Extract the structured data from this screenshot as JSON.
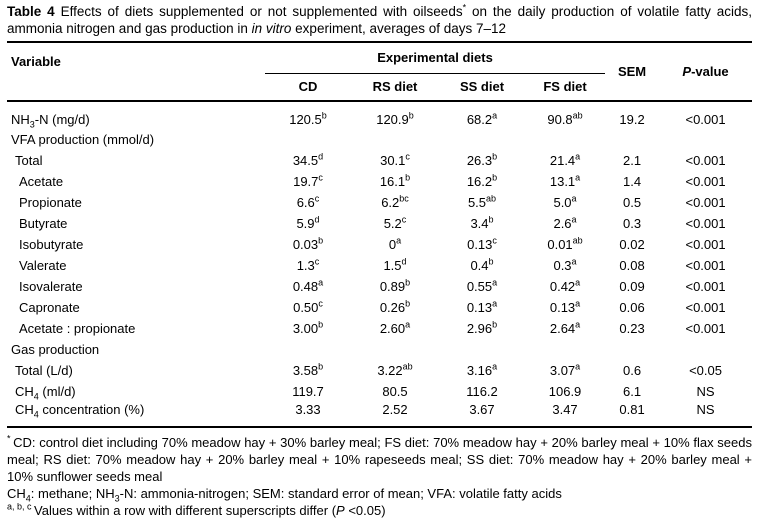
{
  "caption": {
    "segments": [
      {
        "text": "Table 4",
        "bold": true
      },
      {
        "text": " Effects of diets supplemented or not supplemented with oilseeds"
      },
      {
        "text": "*",
        "sup": true
      },
      {
        "text": " on the daily production of volatile fatty acids, ammonia nitrogen and gas production in "
      },
      {
        "text": "in vitro",
        "italic": true
      },
      {
        "text": " experiment, averages of days 7–12"
      }
    ]
  },
  "table": {
    "header": {
      "variable": "Variable",
      "group": "Experimental diets",
      "diet_columns": [
        "CD",
        "RS diet",
        "SS diet",
        "FS diet"
      ],
      "sem": "SEM",
      "pvalue": "*P*-value"
    },
    "rows": [
      {
        "label": "NH_3_-N (mg/d)",
        "indent": 0,
        "section": false,
        "values": [
          "120.5^b^",
          "120.9^b^",
          "68.2^a^",
          "90.8^ab^",
          "19.2",
          "<0.001"
        ]
      },
      {
        "label": "VFA production (mmol/d)",
        "indent": 0,
        "section": true,
        "values": [
          "",
          "",
          "",
          "",
          "",
          ""
        ]
      },
      {
        "label": "Total",
        "indent": 1,
        "section": false,
        "values": [
          "34.5^d^",
          "30.1^c^",
          "26.3^b^",
          "21.4^a^",
          "2.1",
          "<0.001"
        ]
      },
      {
        "label": "Acetate",
        "indent": 2,
        "section": false,
        "values": [
          "19.7^c^",
          "16.1^b^",
          "16.2^b^",
          "13.1^a^",
          "1.4",
          "<0.001"
        ]
      },
      {
        "label": "Propionate",
        "indent": 2,
        "section": false,
        "values": [
          "6.6^c^",
          "6.2^bc^",
          "5.5^ab^",
          "5.0^a^",
          "0.5",
          "<0.001"
        ]
      },
      {
        "label": "Butyrate",
        "indent": 2,
        "section": false,
        "values": [
          "5.9^d^",
          "5.2^c^",
          "3.4^b^",
          "2.6^a^",
          "0.3",
          "<0.001"
        ]
      },
      {
        "label": "Isobutyrate",
        "indent": 2,
        "section": false,
        "values": [
          "0.03^b^",
          "0^a^",
          "0.13^c^",
          "0.01^ab^",
          "0.02",
          "<0.001"
        ]
      },
      {
        "label": "Valerate",
        "indent": 2,
        "section": false,
        "values": [
          "1.3^c^",
          "1.5^d^",
          "0.4^b^",
          "0.3^a^",
          "0.08",
          "<0.001"
        ]
      },
      {
        "label": "Isovalerate",
        "indent": 2,
        "section": false,
        "values": [
          "0.48^a^",
          "0.89^b^",
          "0.55^a^",
          "0.42^a^",
          "0.09",
          "<0.001"
        ]
      },
      {
        "label": "Capronate",
        "indent": 2,
        "section": false,
        "values": [
          "0.50^c^",
          "0.26^b^",
          "0.13^a^",
          "0.13^a^",
          "0.06",
          "<0.001"
        ]
      },
      {
        "label": "Acetate : propionate",
        "indent": 2,
        "section": false,
        "values": [
          "3.00^b^",
          "2.60^a^",
          "2.96^b^",
          "2.64^a^",
          "0.23",
          "<0.001"
        ]
      },
      {
        "label": "Gas production",
        "indent": 0,
        "section": true,
        "values": [
          "",
          "",
          "",
          "",
          "",
          ""
        ]
      },
      {
        "label": "Total (L/d)",
        "indent": 1,
        "section": false,
        "values": [
          "3.58^b^",
          "3.22^ab^",
          "3.16^a^",
          "3.07^a^",
          "0.6",
          "<0.05"
        ]
      },
      {
        "label": "CH_4_ (ml/d)",
        "indent": 1,
        "section": false,
        "values": [
          "119.7",
          "80.5",
          "116.2",
          "106.9",
          "6.1",
          "NS"
        ]
      },
      {
        "label": "CH_4_ concentration (%)",
        "indent": 1,
        "section": false,
        "values": [
          "3.33",
          "2.52",
          "3.67",
          "3.47",
          "0.81",
          "NS"
        ]
      }
    ]
  },
  "footnotes": [
    "^* ^CD: control diet including 70% meadow hay + 30% barley meal; FS diet: 70% meadow hay + 20% barley meal + 10% flax seeds meal; RS diet: 70% meadow hay + 20% barley meal + 10% rapeseeds meal; SS diet: 70% meadow hay + 20% barley meal + 10% sunflower seeds meal",
    "CH_4_: methane; NH_3_-N: ammonia-nitrogen; SEM: standard error of mean; VFA: volatile fatty acids",
    "^a, b, c ^Values within a row with different superscripts differ (*P* <0.05)"
  ]
}
